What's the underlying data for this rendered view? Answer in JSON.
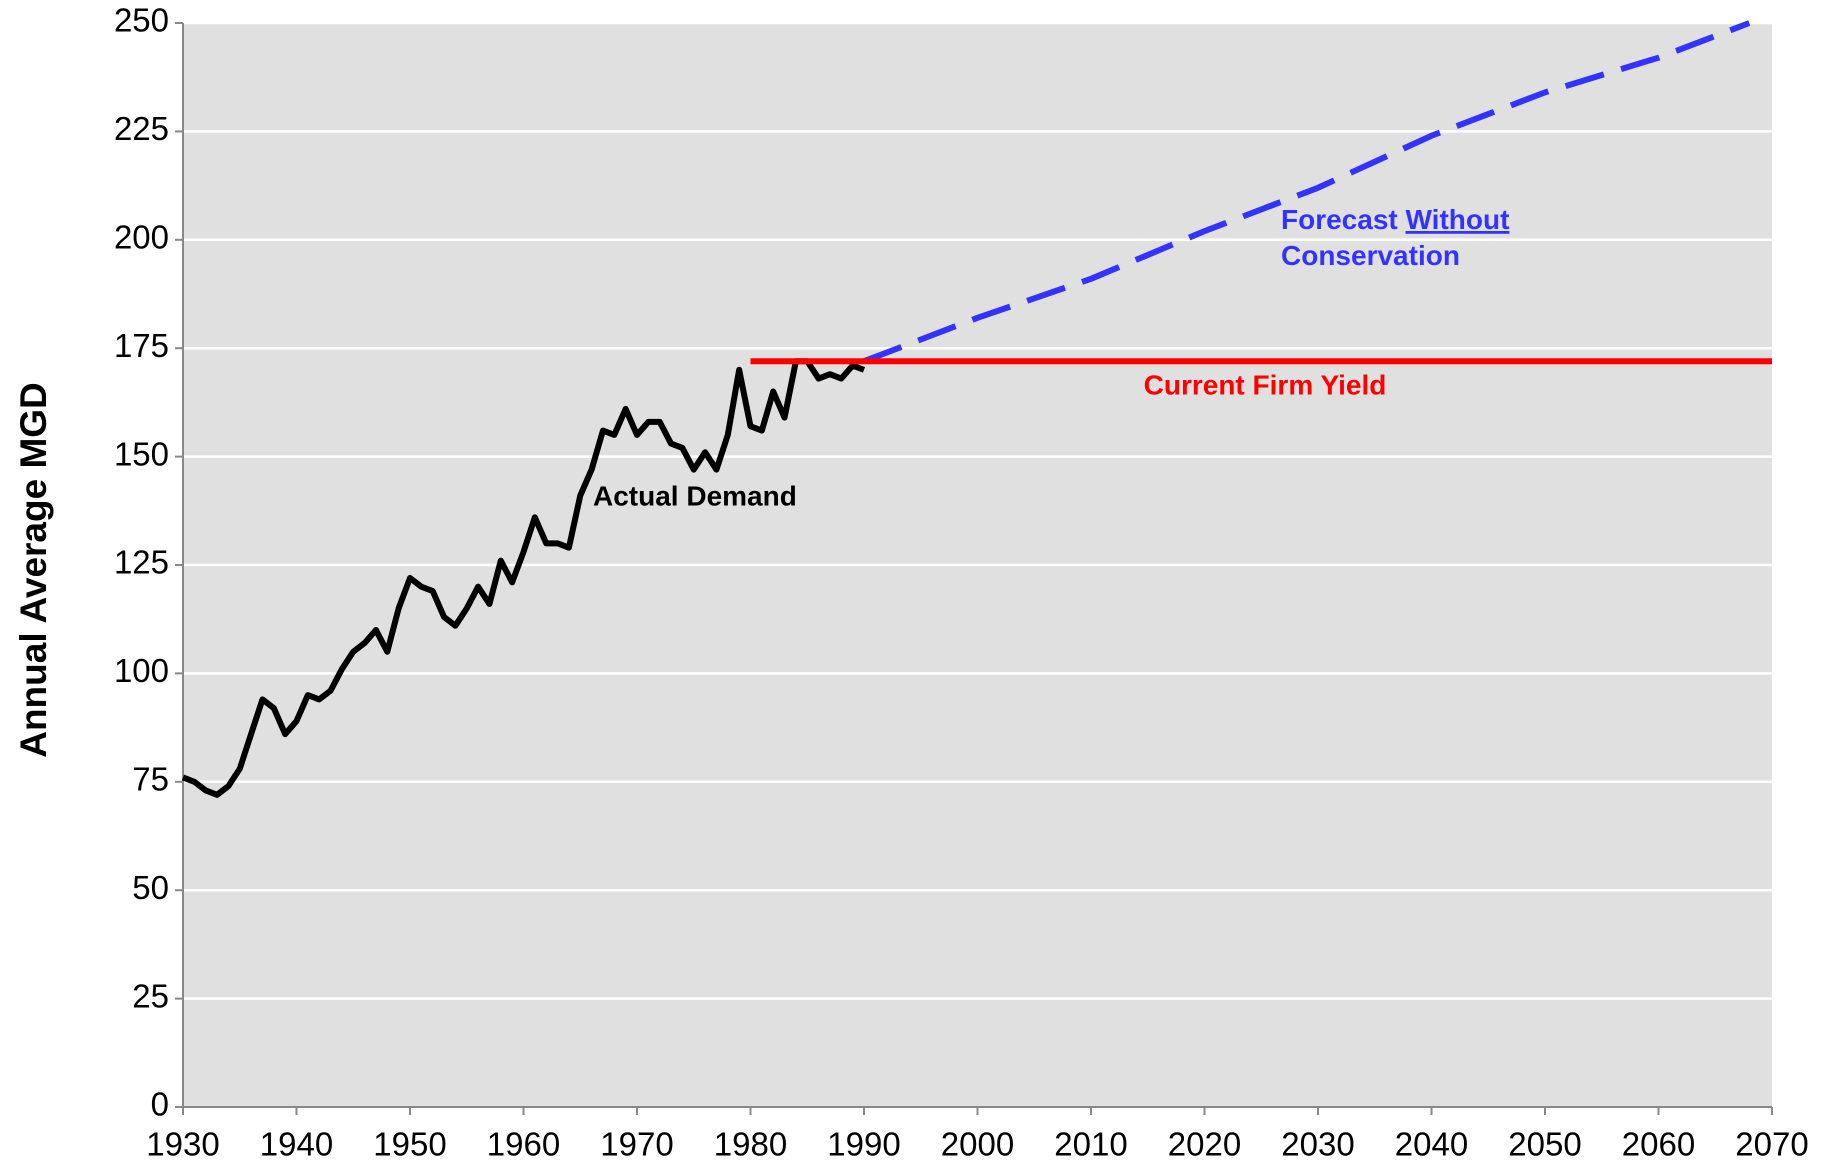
{
  "chart_data": {
    "type": "line",
    "ylabel": "Annual Average MGD",
    "xlim": [
      1930,
      2070
    ],
    "xticks": [
      1930,
      1940,
      1950,
      1960,
      1970,
      1980,
      1990,
      2000,
      2010,
      2020,
      2030,
      2040,
      2050,
      2060,
      2070
    ],
    "ylim": [
      0,
      250
    ],
    "yticks": [
      0,
      25,
      50,
      75,
      100,
      125,
      150,
      175,
      200,
      225,
      250
    ],
    "grid": true,
    "series": [
      {
        "name": "Actual Demand",
        "color": "#000000",
        "dash": false,
        "x": [
          1930,
          1931,
          1932,
          1933,
          1934,
          1935,
          1936,
          1937,
          1938,
          1939,
          1940,
          1941,
          1942,
          1943,
          1944,
          1945,
          1946,
          1947,
          1948,
          1949,
          1950,
          1951,
          1952,
          1953,
          1954,
          1955,
          1956,
          1957,
          1958,
          1959,
          1960,
          1961,
          1962,
          1963,
          1964,
          1965,
          1966,
          1967,
          1968,
          1969,
          1970,
          1971,
          1972,
          1973,
          1974,
          1975,
          1976,
          1977,
          1978,
          1979,
          1980,
          1981,
          1982,
          1983,
          1984,
          1985,
          1986,
          1987,
          1988,
          1989,
          1990
        ],
        "values": [
          76,
          75,
          73,
          72,
          74,
          78,
          86,
          94,
          92,
          86,
          89,
          95,
          94,
          96,
          101,
          105,
          107,
          110,
          105,
          115,
          122,
          120,
          119,
          113,
          111,
          115,
          120,
          116,
          126,
          121,
          128,
          136,
          130,
          130,
          129,
          141,
          147,
          156,
          155,
          161,
          155,
          158,
          158,
          153,
          152,
          147,
          151,
          147,
          155,
          170,
          157,
          156,
          165,
          159,
          172,
          172,
          168,
          169,
          168,
          171,
          170
        ]
      },
      {
        "name": "Forecast Without Conservation",
        "color": "#3333ff",
        "dash": true,
        "x": [
          1990,
          2000,
          2010,
          2020,
          2030,
          2040,
          2050,
          2060,
          2068
        ],
        "values": [
          172,
          182,
          191,
          202,
          212,
          224,
          234,
          242,
          250
        ]
      },
      {
        "name": "Current Firm Yield",
        "color": "#ff0000",
        "dash": false,
        "x": [
          1980,
          2070
        ],
        "values": [
          172,
          172
        ]
      }
    ]
  }
}
